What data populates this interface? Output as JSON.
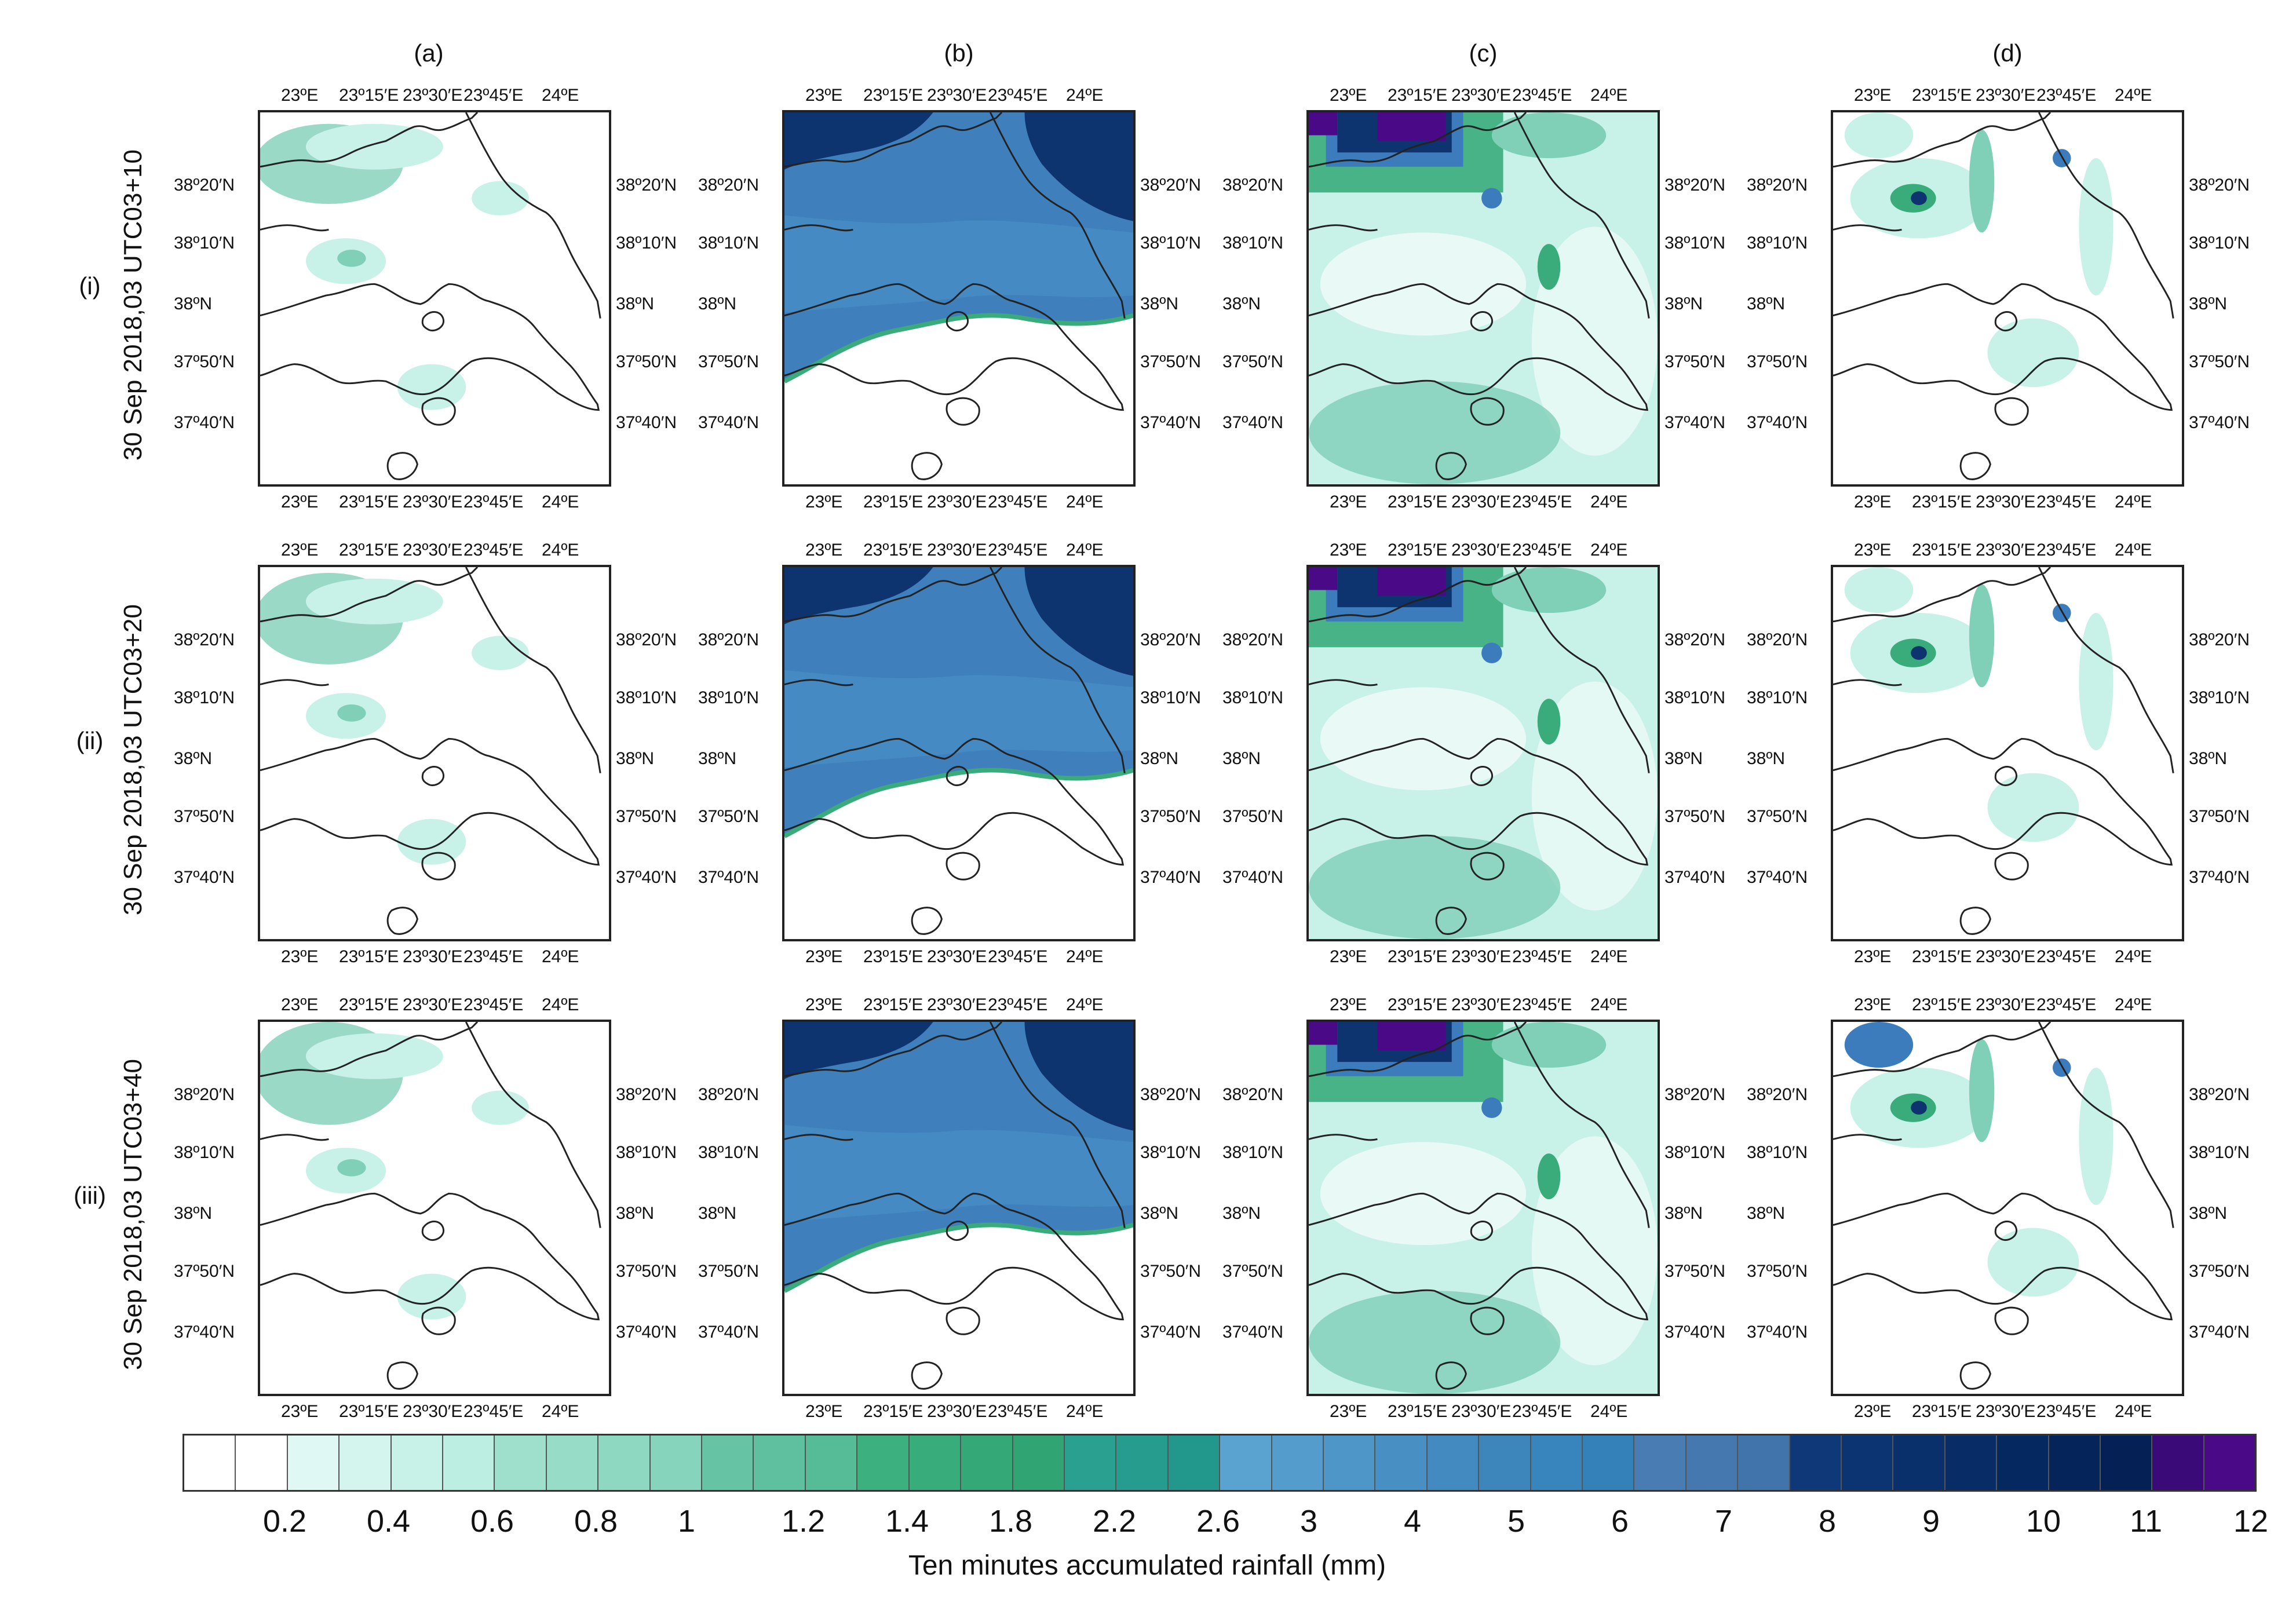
{
  "columns": [
    "(a)",
    "(b)",
    "(c)",
    "(d)"
  ],
  "rows": [
    {
      "roman": "(i)",
      "date": "30 Sep 2018,03 UTC03+10"
    },
    {
      "roman": "(ii)",
      "date": "30 Sep 2018,03 UTC03+20"
    },
    {
      "roman": "(iii)",
      "date": "30 Sep 2018,03 UTC03+40"
    }
  ],
  "lon_ticks": [
    "23ºE",
    "23º15′E",
    "23º30′E",
    "23º45′E",
    "24ºE"
  ],
  "lat_ticks": [
    "38º20′N",
    "38º10′N",
    "38ºN",
    "37º50′N",
    "37º40′N"
  ],
  "colorbar": {
    "title": "Ten minutes accumulated rainfall (mm)",
    "ticks": [
      "0.2",
      "0.4",
      "0.6",
      "0.8",
      "1",
      "1.2",
      "1.4",
      "1.8",
      "2.2",
      "2.6",
      "3",
      "4",
      "5",
      "6",
      "7",
      "8",
      "9",
      "10",
      "11",
      "12"
    ],
    "colors": [
      "#ffffff",
      "#ffffff",
      "#e0f8f3",
      "#d4f5ee",
      "#c8f1e8",
      "#bdeee2",
      "#9ee0cc",
      "#96dcc7",
      "#8ed8c2",
      "#86d4bc",
      "#66c4a4",
      "#5ec09e",
      "#56bc98",
      "#3cb07e",
      "#38ac7a",
      "#34a876",
      "#30a472",
      "#2aa090",
      "#269c8e",
      "#22988c",
      "#5aa2d0",
      "#549ccc",
      "#4e96c8",
      "#4890c4",
      "#428ac0",
      "#3c86bc",
      "#3884bc",
      "#3480b8",
      "#4a7cb4",
      "#4678b0",
      "#4274ac",
      "#0e3878",
      "#0c3472",
      "#0a306c",
      "#082c66",
      "#062860",
      "#04245a",
      "#042054",
      "#3a0a78",
      "#4a0a88"
    ]
  },
  "colors": {
    "land_line": "#222222",
    "b_dark": "#0e3470",
    "b_mid": "#3f80bc",
    "b_light": "#4a8ec6",
    "green_light": "#c8f1e8",
    "green_mid": "#7fd0b6",
    "green_dark": "#3aac7c",
    "blue_spot": "#3c7cbc",
    "purple": "#4a0a88"
  }
}
